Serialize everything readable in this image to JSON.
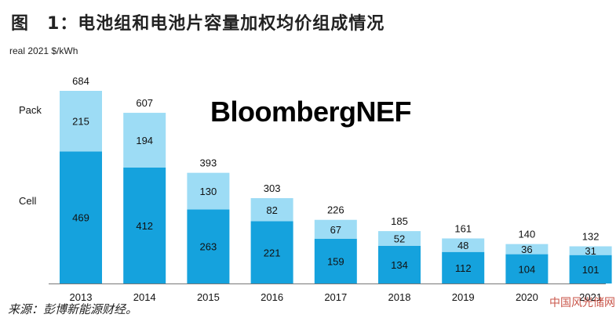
{
  "title": "图　1：电池组和电池片容量加权均价组成情况",
  "unit_label": "real 2021 $/kWh",
  "brand": "BloombergNEF",
  "source": "来源：彭博新能源财经。",
  "watermark": "中国风光储网",
  "chart_data": {
    "type": "bar",
    "stacked": true,
    "ylabel": "real 2021 $/kWh",
    "categories": [
      "2013",
      "2014",
      "2015",
      "2016",
      "2017",
      "2018",
      "2019",
      "2020",
      "2021"
    ],
    "series": [
      {
        "name": "Cell",
        "color": "#15a2dd",
        "values": [
          469,
          412,
          263,
          221,
          159,
          134,
          112,
          104,
          101
        ]
      },
      {
        "name": "Pack",
        "color": "#9ddcf5",
        "values": [
          215,
          194,
          130,
          82,
          67,
          52,
          48,
          36,
          31
        ]
      }
    ],
    "totals": [
      684,
      607,
      393,
      303,
      226,
      185,
      161,
      140,
      132
    ],
    "ylim": [
      0,
      700
    ],
    "grid": false,
    "legend": "left"
  }
}
